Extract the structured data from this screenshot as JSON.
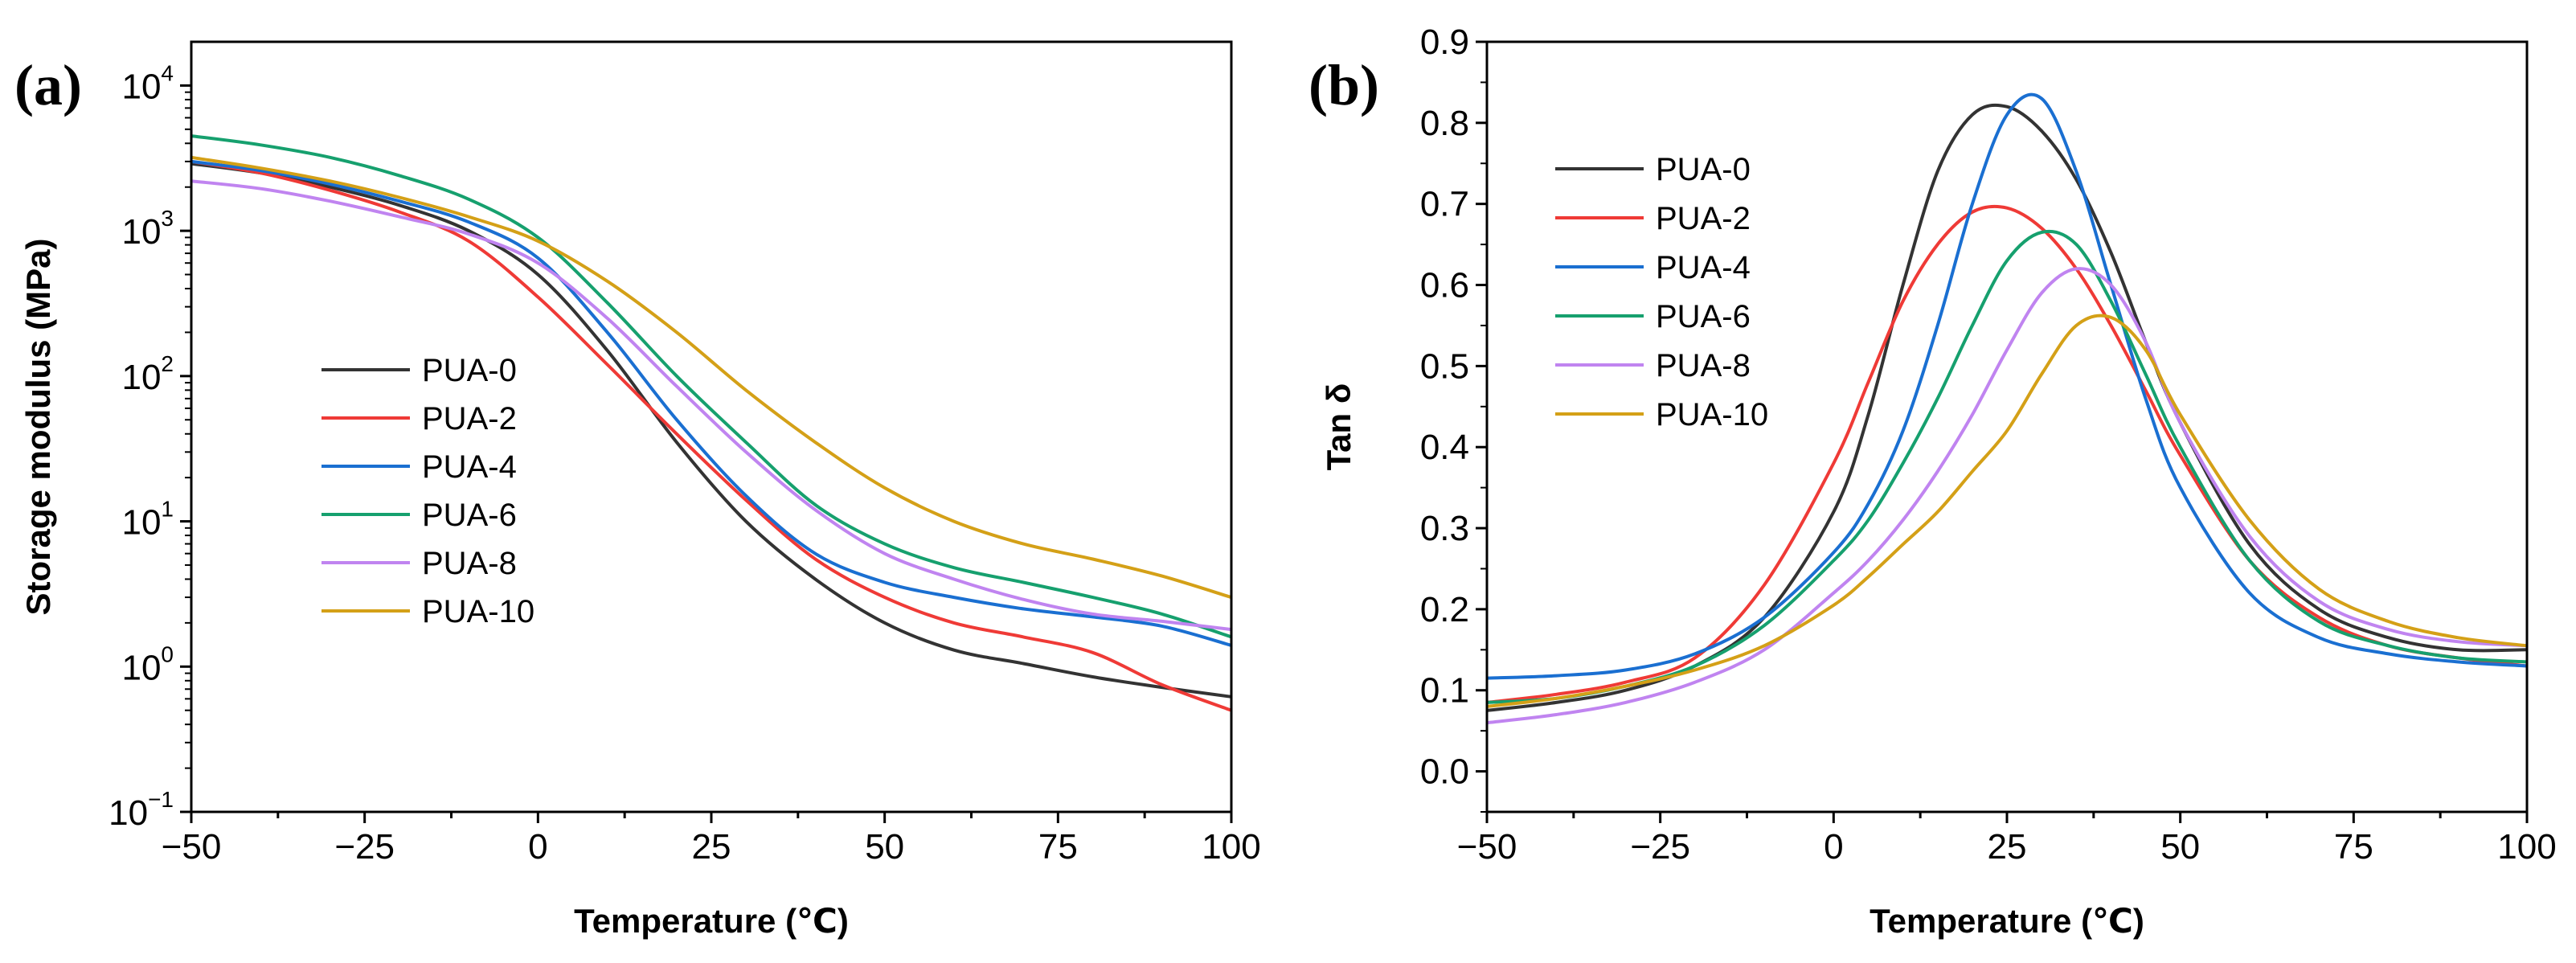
{
  "colors": {
    "PUA-0": "#333333",
    "PUA-2": "#ef3a36",
    "PUA-4": "#1a6fd1",
    "PUA-6": "#16a06e",
    "PUA-8": "#c084f0",
    "PUA-10": "#d4a017"
  },
  "chart_data": [
    {
      "type": "line",
      "panel_label": "(a)",
      "xlabel": "Temperature (℃)",
      "ylabel": "Storage modulus (MPa)",
      "xlim": [
        -50,
        100
      ],
      "ylim": [
        0.1,
        20000
      ],
      "yscale": "log",
      "x_ticks": [
        -50,
        -25,
        0,
        25,
        50,
        75,
        100
      ],
      "x_tick_labels": [
        "−50",
        "−25",
        "0",
        "25",
        "50",
        "75",
        "100"
      ],
      "y_ticks": [
        {
          "value": 0.1,
          "base": "10",
          "exp": "−1"
        },
        {
          "value": 1,
          "base": "10",
          "exp": "0"
        },
        {
          "value": 10,
          "base": "10",
          "exp": "1"
        },
        {
          "value": 100,
          "base": "10",
          "exp": "2"
        },
        {
          "value": 1000,
          "base": "10",
          "exp": "3"
        },
        {
          "value": 10000,
          "base": "10",
          "exp": "4"
        }
      ],
      "grid": false,
      "legend_position": "center-left",
      "x": [
        -50,
        -40,
        -30,
        -20,
        -10,
        0,
        10,
        20,
        30,
        40,
        50,
        60,
        70,
        80,
        90,
        100
      ],
      "series": [
        {
          "name": "PUA-0",
          "values": [
            2900,
            2500,
            2000,
            1500,
            1000,
            500,
            150,
            35,
            10,
            4,
            2,
            1.3,
            1.05,
            0.85,
            0.72,
            0.62
          ]
        },
        {
          "name": "PUA-2",
          "values": [
            3000,
            2500,
            1900,
            1350,
            850,
            350,
            120,
            40,
            14,
            5.5,
            3,
            2,
            1.6,
            1.25,
            0.75,
            0.5
          ]
        },
        {
          "name": "PUA-4",
          "values": [
            3000,
            2600,
            2100,
            1600,
            1150,
            650,
            200,
            50,
            15,
            6,
            3.8,
            3,
            2.5,
            2.2,
            1.9,
            1.4
          ]
        },
        {
          "name": "PUA-6",
          "values": [
            4500,
            3900,
            3200,
            2400,
            1650,
            900,
            320,
            100,
            35,
            13,
            7,
            4.8,
            3.8,
            3,
            2.3,
            1.6
          ]
        },
        {
          "name": "PUA-8",
          "values": [
            2200,
            1950,
            1600,
            1250,
            950,
            600,
            250,
            85,
            30,
            12,
            6,
            4,
            2.9,
            2.3,
            2.05,
            1.8
          ]
        },
        {
          "name": "PUA-10",
          "values": [
            3200,
            2700,
            2200,
            1700,
            1250,
            850,
            450,
            200,
            80,
            35,
            17,
            10,
            7,
            5.5,
            4.2,
            3
          ]
        }
      ]
    },
    {
      "type": "line",
      "panel_label": "(b)",
      "xlabel": "Temperature (℃)",
      "ylabel": "Tan δ",
      "xlim": [
        -50,
        100
      ],
      "ylim": [
        -0.05,
        0.9
      ],
      "x_ticks": [
        -50,
        -25,
        0,
        25,
        50,
        75,
        100
      ],
      "x_tick_labels": [
        "−50",
        "−25",
        "0",
        "25",
        "50",
        "75",
        "100"
      ],
      "y_ticks": [
        0.0,
        0.1,
        0.2,
        0.3,
        0.4,
        0.5,
        0.6,
        0.7,
        0.8,
        0.9
      ],
      "y_tick_labels": [
        "0.0",
        "0.1",
        "0.2",
        "0.3",
        "0.4",
        "0.5",
        "0.6",
        "0.7",
        "0.8",
        "0.9"
      ],
      "grid": false,
      "legend_position": "top-left",
      "x": [
        -50,
        -40,
        -30,
        -20,
        -10,
        0,
        5,
        10,
        15,
        20,
        25,
        30,
        35,
        40,
        45,
        50,
        60,
        70,
        80,
        90,
        100
      ],
      "series": [
        {
          "name": "PUA-0",
          "values": [
            0.075,
            0.085,
            0.1,
            0.13,
            0.19,
            0.32,
            0.44,
            0.6,
            0.74,
            0.81,
            0.82,
            0.79,
            0.73,
            0.64,
            0.53,
            0.43,
            0.28,
            0.2,
            0.165,
            0.15,
            0.15
          ]
        },
        {
          "name": "PUA-2",
          "values": [
            0.085,
            0.095,
            0.11,
            0.14,
            0.23,
            0.38,
            0.48,
            0.58,
            0.65,
            0.69,
            0.695,
            0.67,
            0.62,
            0.55,
            0.47,
            0.39,
            0.26,
            0.19,
            0.155,
            0.14,
            0.13
          ]
        },
        {
          "name": "PUA-4",
          "values": [
            0.115,
            0.118,
            0.125,
            0.145,
            0.19,
            0.27,
            0.33,
            0.42,
            0.55,
            0.7,
            0.81,
            0.83,
            0.74,
            0.6,
            0.46,
            0.35,
            0.22,
            0.165,
            0.145,
            0.135,
            0.13
          ]
        },
        {
          "name": "PUA-6",
          "values": [
            0.085,
            0.09,
            0.105,
            0.13,
            0.18,
            0.26,
            0.31,
            0.38,
            0.46,
            0.55,
            0.63,
            0.665,
            0.65,
            0.58,
            0.49,
            0.4,
            0.26,
            0.185,
            0.155,
            0.14,
            0.135
          ]
        },
        {
          "name": "PUA-8",
          "values": [
            0.06,
            0.07,
            0.085,
            0.11,
            0.15,
            0.22,
            0.26,
            0.31,
            0.37,
            0.44,
            0.52,
            0.59,
            0.62,
            0.6,
            0.53,
            0.43,
            0.29,
            0.21,
            0.175,
            0.16,
            0.155
          ]
        },
        {
          "name": "PUA-10",
          "values": [
            0.08,
            0.09,
            0.105,
            0.125,
            0.155,
            0.205,
            0.24,
            0.28,
            0.32,
            0.37,
            0.42,
            0.49,
            0.55,
            0.56,
            0.52,
            0.44,
            0.31,
            0.225,
            0.185,
            0.165,
            0.155
          ]
        }
      ]
    }
  ]
}
